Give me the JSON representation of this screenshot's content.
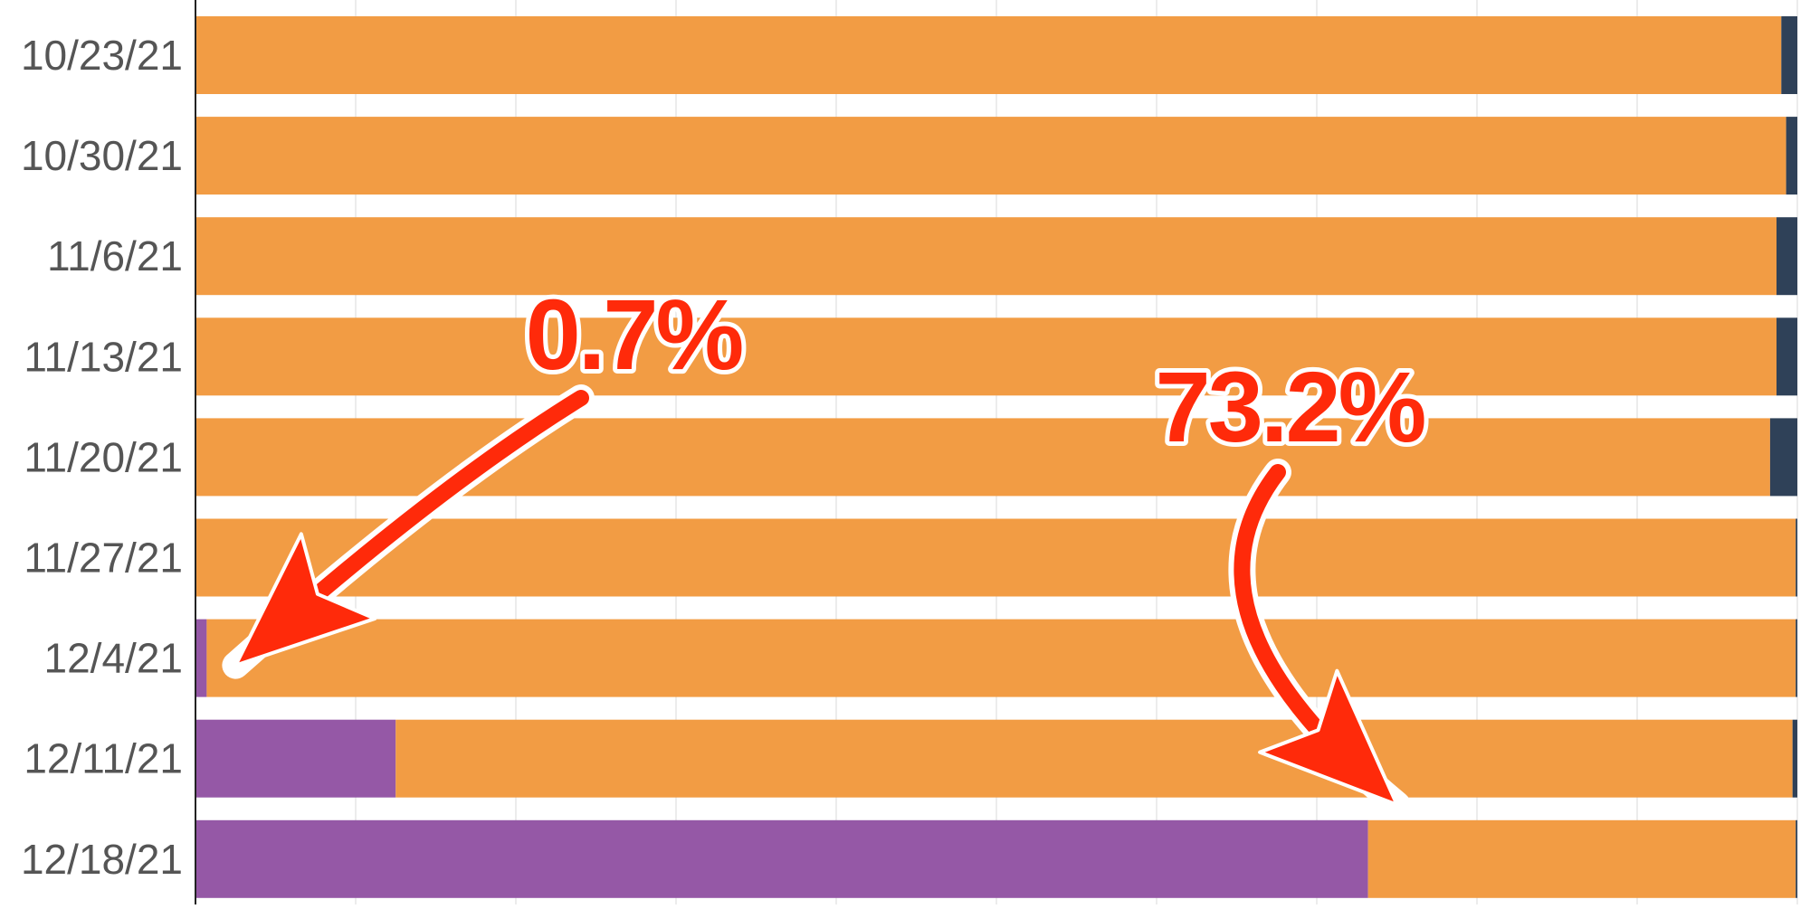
{
  "chart_data": {
    "type": "bar",
    "orientation": "horizontal",
    "stacked": true,
    "normalized": true,
    "title": "",
    "xlabel": "",
    "ylabel": "",
    "xlim": [
      0,
      100
    ],
    "grid": true,
    "legend": "none",
    "categories": [
      "10/23/21",
      "10/30/21",
      "11/6/21",
      "11/13/21",
      "11/20/21",
      "11/27/21",
      "12/4/21",
      "12/11/21",
      "12/18/21"
    ],
    "series": [
      {
        "color": "#9558a6",
        "values": [
          0,
          0,
          0,
          0,
          0,
          0,
          0.7,
          12.5,
          73.2
        ]
      },
      {
        "color": "#f29c44",
        "values": [
          99.0,
          99.3,
          98.7,
          98.7,
          98.3,
          99.9,
          99.2,
          87.2,
          26.7
        ]
      },
      {
        "color": "#2f4158",
        "values": [
          1.0,
          0.7,
          1.3,
          1.3,
          1.7,
          0.1,
          0.1,
          0.3,
          0.1
        ]
      }
    ],
    "annotations": [
      {
        "text": "0.7%",
        "color": "#ff2a0a",
        "category": "12/4/21",
        "points_to": 0.7
      },
      {
        "text": "73.2%",
        "color": "#ff2a0a",
        "category": "12/18/21",
        "points_to": 73.2
      }
    ]
  }
}
